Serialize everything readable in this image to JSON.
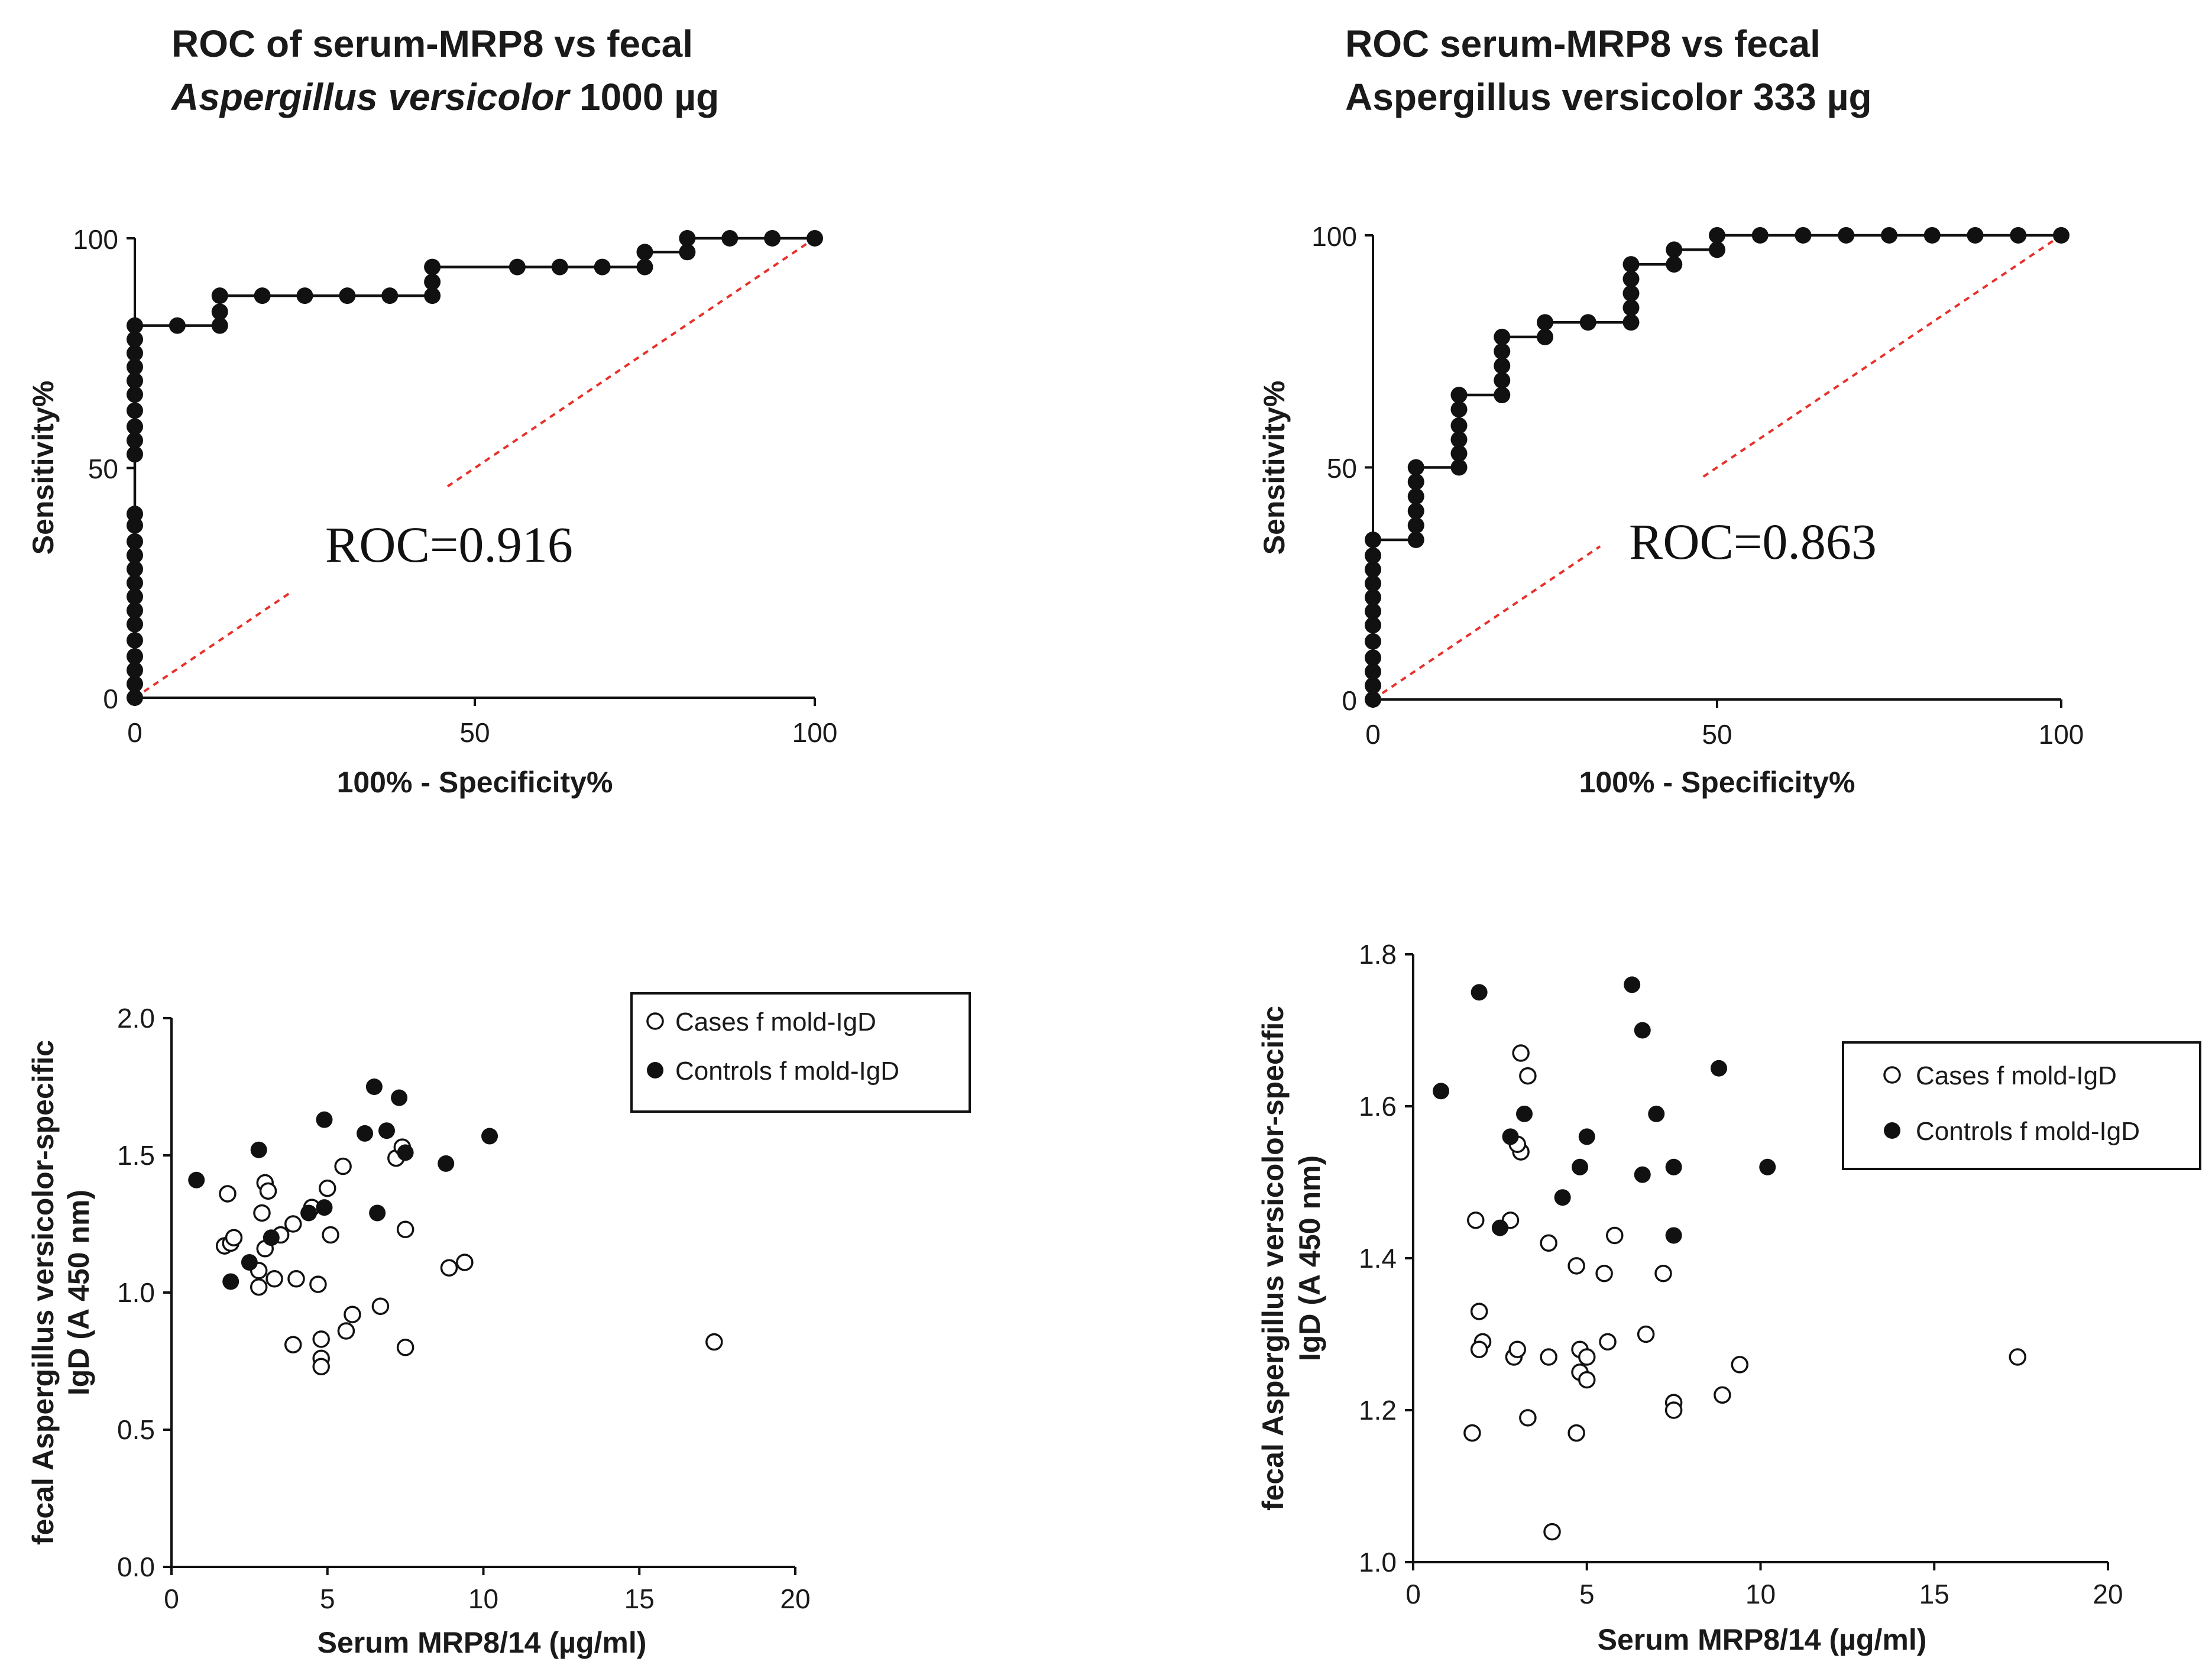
{
  "chart_data": [
    {
      "id": "roc1000",
      "type": "line",
      "title_line1": "ROC of serum-MRP8 vs fecal",
      "title_line2_italic": "Aspergillus versicolor",
      "title_line2_rest": " 1000 µg",
      "xlabel": "100% - Specificity%",
      "ylabel": "Sensitivity%",
      "xlim": [
        0,
        100
      ],
      "ylim": [
        0,
        100
      ],
      "xticks": [
        "0",
        "50",
        "100"
      ],
      "yticks": [
        "0",
        "50",
        "100"
      ],
      "annotation": "ROC=0.916",
      "series": [
        {
          "name": "ROC curve",
          "points": [
            [
              0,
              0
            ],
            [
              0,
              3
            ],
            [
              0,
              6
            ],
            [
              0,
              9
            ],
            [
              0,
              12.5
            ],
            [
              0,
              16
            ],
            [
              0,
              19
            ],
            [
              0,
              22
            ],
            [
              0,
              25
            ],
            [
              0,
              28
            ],
            [
              0,
              31
            ],
            [
              0,
              34
            ],
            [
              0,
              37.5
            ],
            [
              0,
              40
            ],
            [
              0,
              53
            ],
            [
              0,
              56
            ],
            [
              0,
              59
            ],
            [
              0,
              62.5
            ],
            [
              0,
              66
            ],
            [
              0,
              69
            ],
            [
              0,
              72
            ],
            [
              0,
              75
            ],
            [
              0,
              78
            ],
            [
              0,
              81
            ],
            [
              6.25,
              81
            ],
            [
              12.5,
              81
            ],
            [
              12.5,
              84
            ],
            [
              12.5,
              87.5
            ],
            [
              18.75,
              87.5
            ],
            [
              25,
              87.5
            ],
            [
              31.25,
              87.5
            ],
            [
              37.5,
              87.5
            ],
            [
              43.75,
              87.5
            ],
            [
              43.75,
              90.5
            ],
            [
              43.75,
              93.75
            ],
            [
              56.25,
              93.75
            ],
            [
              62.5,
              93.75
            ],
            [
              68.75,
              93.75
            ],
            [
              75,
              93.75
            ],
            [
              75,
              97
            ],
            [
              81.25,
              97
            ],
            [
              81.25,
              100
            ],
            [
              87.5,
              100
            ],
            [
              93.75,
              100
            ],
            [
              100,
              100
            ]
          ]
        },
        {
          "name": "Reference",
          "points": [
            [
              0,
              0
            ],
            [
              100,
              100
            ]
          ]
        }
      ]
    },
    {
      "id": "roc333",
      "type": "line",
      "title_line1": "ROC serum-MRP8 vs fecal",
      "title_line2_italic": "",
      "title_line2_rest": "Aspergillus versicolor 333 µg",
      "xlabel": "100% - Specificity%",
      "ylabel": "Sensitivity%",
      "xlim": [
        0,
        100
      ],
      "ylim": [
        0,
        100
      ],
      "xticks": [
        "0",
        "50",
        "100"
      ],
      "yticks": [
        "0",
        "50",
        "100"
      ],
      "annotation": "ROC=0.863",
      "series": [
        {
          "name": "ROC curve",
          "points": [
            [
              0,
              0
            ],
            [
              0,
              3
            ],
            [
              0,
              6
            ],
            [
              0,
              9
            ],
            [
              0,
              12.5
            ],
            [
              0,
              16
            ],
            [
              0,
              19
            ],
            [
              0,
              22
            ],
            [
              0,
              25
            ],
            [
              0,
              28
            ],
            [
              0,
              31
            ],
            [
              0,
              34.4
            ],
            [
              6.25,
              34.4
            ],
            [
              6.25,
              37.5
            ],
            [
              6.25,
              40.6
            ],
            [
              6.25,
              43.75
            ],
            [
              6.25,
              46.9
            ],
            [
              6.25,
              50
            ],
            [
              12.5,
              50
            ],
            [
              12.5,
              53
            ],
            [
              12.5,
              56
            ],
            [
              12.5,
              59
            ],
            [
              12.5,
              62.5
            ],
            [
              12.5,
              65.6
            ],
            [
              18.75,
              65.6
            ],
            [
              18.75,
              68.75
            ],
            [
              18.75,
              71.9
            ],
            [
              18.75,
              75
            ],
            [
              18.75,
              78.1
            ],
            [
              25,
              78.1
            ],
            [
              25,
              81.25
            ],
            [
              31.25,
              81.25
            ],
            [
              37.5,
              81.25
            ],
            [
              37.5,
              84.4
            ],
            [
              37.5,
              87.5
            ],
            [
              37.5,
              90.6
            ],
            [
              37.5,
              93.75
            ],
            [
              43.75,
              93.75
            ],
            [
              43.75,
              96.9
            ],
            [
              50,
              96.9
            ],
            [
              50,
              100
            ],
            [
              56.25,
              100
            ],
            [
              62.5,
              100
            ],
            [
              68.75,
              100
            ],
            [
              75,
              100
            ],
            [
              81.25,
              100
            ],
            [
              87.5,
              100
            ],
            [
              93.75,
              100
            ],
            [
              100,
              100
            ]
          ]
        },
        {
          "name": "Reference",
          "points": [
            [
              0,
              0
            ],
            [
              100,
              100
            ]
          ]
        }
      ]
    },
    {
      "id": "scatter1000",
      "type": "scatter",
      "xlabel": "Serum MRP8/14 (µg/ml)",
      "ylabel_line1": "fecal Aspergillus versicolor-specific",
      "ylabel_line2": "IgD (A 450 nm)",
      "xlim": [
        0,
        20
      ],
      "ylim": [
        0,
        2
      ],
      "xticks": [
        "0",
        "5",
        "10",
        "15",
        "20"
      ],
      "yticks": [
        "0.0",
        "0.5",
        "1.0",
        "1.5",
        "2.0"
      ],
      "legend": [
        "Cases f mold-IgD",
        "Controls f mold-IgD"
      ],
      "series": [
        {
          "name": "Cases f mold-IgD",
          "marker": "open",
          "points": [
            [
              1.8,
              1.36
            ],
            [
              1.7,
              1.17
            ],
            [
              1.9,
              1.18
            ],
            [
              2.0,
              1.2
            ],
            [
              2.8,
              1.02
            ],
            [
              2.8,
              1.08
            ],
            [
              3.0,
              1.16
            ],
            [
              2.9,
              1.29
            ],
            [
              3.0,
              1.4
            ],
            [
              3.1,
              1.37
            ],
            [
              3.3,
              1.05
            ],
            [
              3.5,
              1.21
            ],
            [
              3.9,
              1.25
            ],
            [
              4.0,
              1.05
            ],
            [
              3.9,
              0.81
            ],
            [
              4.5,
              1.31
            ],
            [
              4.7,
              1.03
            ],
            [
              4.8,
              0.83
            ],
            [
              4.8,
              0.76
            ],
            [
              4.8,
              0.73
            ],
            [
              5.0,
              1.38
            ],
            [
              5.1,
              1.21
            ],
            [
              5.5,
              1.46
            ],
            [
              5.6,
              0.86
            ],
            [
              5.8,
              0.92
            ],
            [
              6.7,
              0.95
            ],
            [
              7.2,
              1.49
            ],
            [
              7.4,
              1.53
            ],
            [
              7.5,
              1.23
            ],
            [
              7.5,
              0.8
            ],
            [
              8.9,
              1.09
            ],
            [
              9.4,
              1.11
            ],
            [
              17.4,
              0.82
            ]
          ]
        },
        {
          "name": "Controls f mold-IgD",
          "marker": "filled",
          "points": [
            [
              0.8,
              1.41
            ],
            [
              1.9,
              1.04
            ],
            [
              2.5,
              1.11
            ],
            [
              2.8,
              1.52
            ],
            [
              3.2,
              1.2
            ],
            [
              4.4,
              1.29
            ],
            [
              4.9,
              1.31
            ],
            [
              4.9,
              1.63
            ],
            [
              6.2,
              1.58
            ],
            [
              6.5,
              1.75
            ],
            [
              6.6,
              1.29
            ],
            [
              6.9,
              1.59
            ],
            [
              7.3,
              1.71
            ],
            [
              7.5,
              1.51
            ],
            [
              8.8,
              1.47
            ],
            [
              10.2,
              1.57
            ]
          ]
        }
      ]
    },
    {
      "id": "scatter333",
      "type": "scatter",
      "xlabel": "Serum MRP8/14 (µg/ml)",
      "ylabel_line1": "fecal Aspergillus versicolor-specific",
      "ylabel_line2": "IgD (A 450 nm)",
      "xlim": [
        0,
        20
      ],
      "ylim": [
        1.0,
        1.8
      ],
      "xticks": [
        "0",
        "5",
        "10",
        "15",
        "20"
      ],
      "yticks": [
        "1.0",
        "1.2",
        "1.4",
        "1.6",
        "1.8"
      ],
      "legend": [
        "Cases f mold-IgD",
        "Controls f mold-IgD"
      ],
      "series": [
        {
          "name": "Cases f mold-IgD",
          "marker": "open",
          "points": [
            [
              1.8,
              1.45
            ],
            [
              1.7,
              1.17
            ],
            [
              1.9,
              1.33
            ],
            [
              2.0,
              1.29
            ],
            [
              1.9,
              1.28
            ],
            [
              2.8,
              1.45
            ],
            [
              2.9,
              1.27
            ],
            [
              3.0,
              1.28
            ],
            [
              3.1,
              1.54
            ],
            [
              3.0,
              1.55
            ],
            [
              3.1,
              1.67
            ],
            [
              3.3,
              1.64
            ],
            [
              3.3,
              1.19
            ],
            [
              3.9,
              1.42
            ],
            [
              3.9,
              1.27
            ],
            [
              4.0,
              1.04
            ],
            [
              4.7,
              1.39
            ],
            [
              4.7,
              1.17
            ],
            [
              4.8,
              1.28
            ],
            [
              4.8,
              1.25
            ],
            [
              5.0,
              1.24
            ],
            [
              5.0,
              1.27
            ],
            [
              5.5,
              1.38
            ],
            [
              5.6,
              1.29
            ],
            [
              5.8,
              1.43
            ],
            [
              6.7,
              1.3
            ],
            [
              7.2,
              1.38
            ],
            [
              7.5,
              1.21
            ],
            [
              7.5,
              1.2
            ],
            [
              8.9,
              1.22
            ],
            [
              9.4,
              1.26
            ],
            [
              17.4,
              1.27
            ]
          ]
        },
        {
          "name": "Controls f mold-IgD",
          "marker": "filled",
          "points": [
            [
              0.8,
              1.62
            ],
            [
              1.9,
              1.75
            ],
            [
              2.5,
              1.44
            ],
            [
              2.8,
              1.56
            ],
            [
              3.2,
              1.59
            ],
            [
              4.3,
              1.48
            ],
            [
              4.8,
              1.52
            ],
            [
              5.0,
              1.56
            ],
            [
              6.3,
              1.76
            ],
            [
              6.6,
              1.7
            ],
            [
              6.6,
              1.51
            ],
            [
              7.0,
              1.59
            ],
            [
              7.5,
              1.52
            ],
            [
              7.5,
              1.43
            ],
            [
              8.8,
              1.65
            ],
            [
              10.2,
              1.52
            ]
          ]
        }
      ]
    }
  ]
}
